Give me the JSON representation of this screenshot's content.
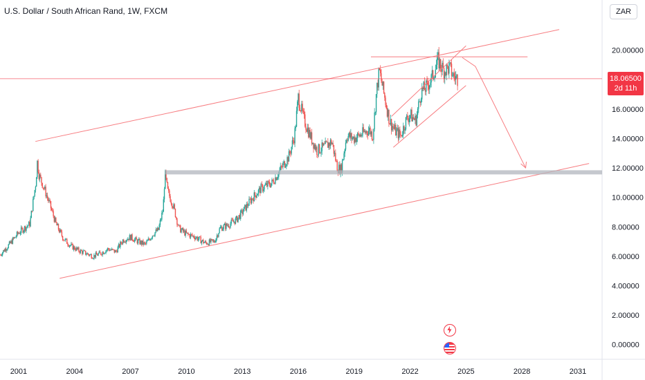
{
  "header": {
    "title": "U.S. Dollar / South African Rand, 1W, FXCM",
    "currency_badge": "ZAR"
  },
  "last_price": {
    "value_label": "18.06500",
    "countdown": "2d 11h",
    "value": 18.065
  },
  "colors": {
    "up": "#26a69a",
    "down": "#ef5350",
    "trendline": "#f77c80",
    "support_band": "#b2b5be",
    "price_label_bg": "#f23645"
  },
  "icons": [
    "lightning-icon",
    "us-flag-icon"
  ],
  "chart_data": {
    "type": "candlestick",
    "title": "U.S. Dollar / South African Rand, 1W, FXCM",
    "xlabel": "",
    "ylabel": "",
    "ylim": [
      -1.0,
      22.0
    ],
    "xlim": [
      2000.0,
      2032.3
    ],
    "y_ticks": [
      "0.00000",
      "2.00000",
      "4.00000",
      "6.00000",
      "8.00000",
      "10.00000",
      "12.00000",
      "14.00000",
      "16.00000",
      "18.00000",
      "20.00000"
    ],
    "y_tick_values": [
      0,
      2,
      4,
      6,
      8,
      10,
      12,
      14,
      16,
      18,
      20
    ],
    "x_ticks": [
      "2001",
      "2004",
      "2007",
      "2010",
      "2013",
      "2016",
      "2019",
      "2022",
      "2025",
      "2028",
      "2031"
    ],
    "x_tick_values": [
      2001,
      2004,
      2007,
      2010,
      2013,
      2016,
      2019,
      2022,
      2025,
      2028,
      2031
    ],
    "price_path": [
      [
        2000.0,
        6.1
      ],
      [
        2000.5,
        6.8
      ],
      [
        2001.0,
        7.6
      ],
      [
        2001.3,
        7.9
      ],
      [
        2001.6,
        8.2
      ],
      [
        2001.75,
        9.5
      ],
      [
        2001.92,
        11.0
      ],
      [
        2002.0,
        12.4
      ],
      [
        2002.1,
        11.5
      ],
      [
        2002.4,
        10.5
      ],
      [
        2002.7,
        9.4
      ],
      [
        2003.0,
        8.2
      ],
      [
        2003.4,
        7.2
      ],
      [
        2003.8,
        6.7
      ],
      [
        2004.2,
        6.4
      ],
      [
        2004.6,
        6.2
      ],
      [
        2005.0,
        6.0
      ],
      [
        2005.4,
        6.2
      ],
      [
        2005.8,
        6.5
      ],
      [
        2006.2,
        6.3
      ],
      [
        2006.6,
        7.1
      ],
      [
        2007.0,
        7.3
      ],
      [
        2007.4,
        7.0
      ],
      [
        2007.8,
        6.8
      ],
      [
        2008.2,
        7.5
      ],
      [
        2008.5,
        7.8
      ],
      [
        2008.75,
        9.2
      ],
      [
        2008.85,
        11.6
      ],
      [
        2009.0,
        10.4
      ],
      [
        2009.3,
        9.4
      ],
      [
        2009.6,
        7.9
      ],
      [
        2010.0,
        7.5
      ],
      [
        2010.5,
        7.3
      ],
      [
        2011.0,
        6.9
      ],
      [
        2011.5,
        7.0
      ],
      [
        2011.8,
        7.9
      ],
      [
        2012.2,
        8.1
      ],
      [
        2012.7,
        8.5
      ],
      [
        2013.0,
        9.0
      ],
      [
        2013.5,
        9.9
      ],
      [
        2014.0,
        10.6
      ],
      [
        2014.6,
        11.0
      ],
      [
        2015.0,
        11.8
      ],
      [
        2015.5,
        12.8
      ],
      [
        2015.8,
        14.2
      ],
      [
        2016.0,
        16.8
      ],
      [
        2016.3,
        15.3
      ],
      [
        2016.7,
        14.0
      ],
      [
        2017.0,
        13.2
      ],
      [
        2017.4,
        13.4
      ],
      [
        2017.8,
        13.8
      ],
      [
        2018.1,
        12.0
      ],
      [
        2018.3,
        11.9
      ],
      [
        2018.6,
        14.2
      ],
      [
        2019.0,
        14.0
      ],
      [
        2019.4,
        14.3
      ],
      [
        2019.8,
        14.6
      ],
      [
        2020.0,
        14.2
      ],
      [
        2020.2,
        17.2
      ],
      [
        2020.35,
        18.6
      ],
      [
        2020.6,
        17.0
      ],
      [
        2020.9,
        15.2
      ],
      [
        2021.2,
        14.5
      ],
      [
        2021.5,
        14.2
      ],
      [
        2021.8,
        15.3
      ],
      [
        2022.0,
        15.6
      ],
      [
        2022.3,
        15.2
      ],
      [
        2022.6,
        17.2
      ],
      [
        2022.9,
        17.5
      ],
      [
        2023.2,
        18.2
      ],
      [
        2023.5,
        19.3
      ],
      [
        2023.8,
        18.6
      ],
      [
        2024.1,
        18.8
      ],
      [
        2024.35,
        18.2
      ],
      [
        2024.55,
        18.065
      ]
    ],
    "annotations": {
      "upper_channel": [
        [
          2001.9,
          13.8
        ],
        [
          2030.0,
          21.4
        ]
      ],
      "lower_channel": [
        [
          2003.2,
          4.5
        ],
        [
          2031.6,
          12.3
        ]
      ],
      "support_band": {
        "x": [
          2008.85,
          2032.3
        ],
        "y": 11.7
      },
      "resistance": {
        "x": [
          2019.9,
          2028.3
        ],
        "y": 19.55
      },
      "rising_wedge_upper": [
        [
          2021.0,
          15.5
        ],
        [
          2025.0,
          20.3
        ]
      ],
      "rising_wedge_lower": [
        [
          2021.1,
          13.4
        ],
        [
          2025.0,
          17.6
        ]
      ],
      "projection_arrow": [
        [
          2024.8,
          19.5
        ],
        [
          2025.5,
          18.9
        ],
        [
          2028.2,
          12.0
        ]
      ],
      "last_price_line": 18.065
    }
  }
}
